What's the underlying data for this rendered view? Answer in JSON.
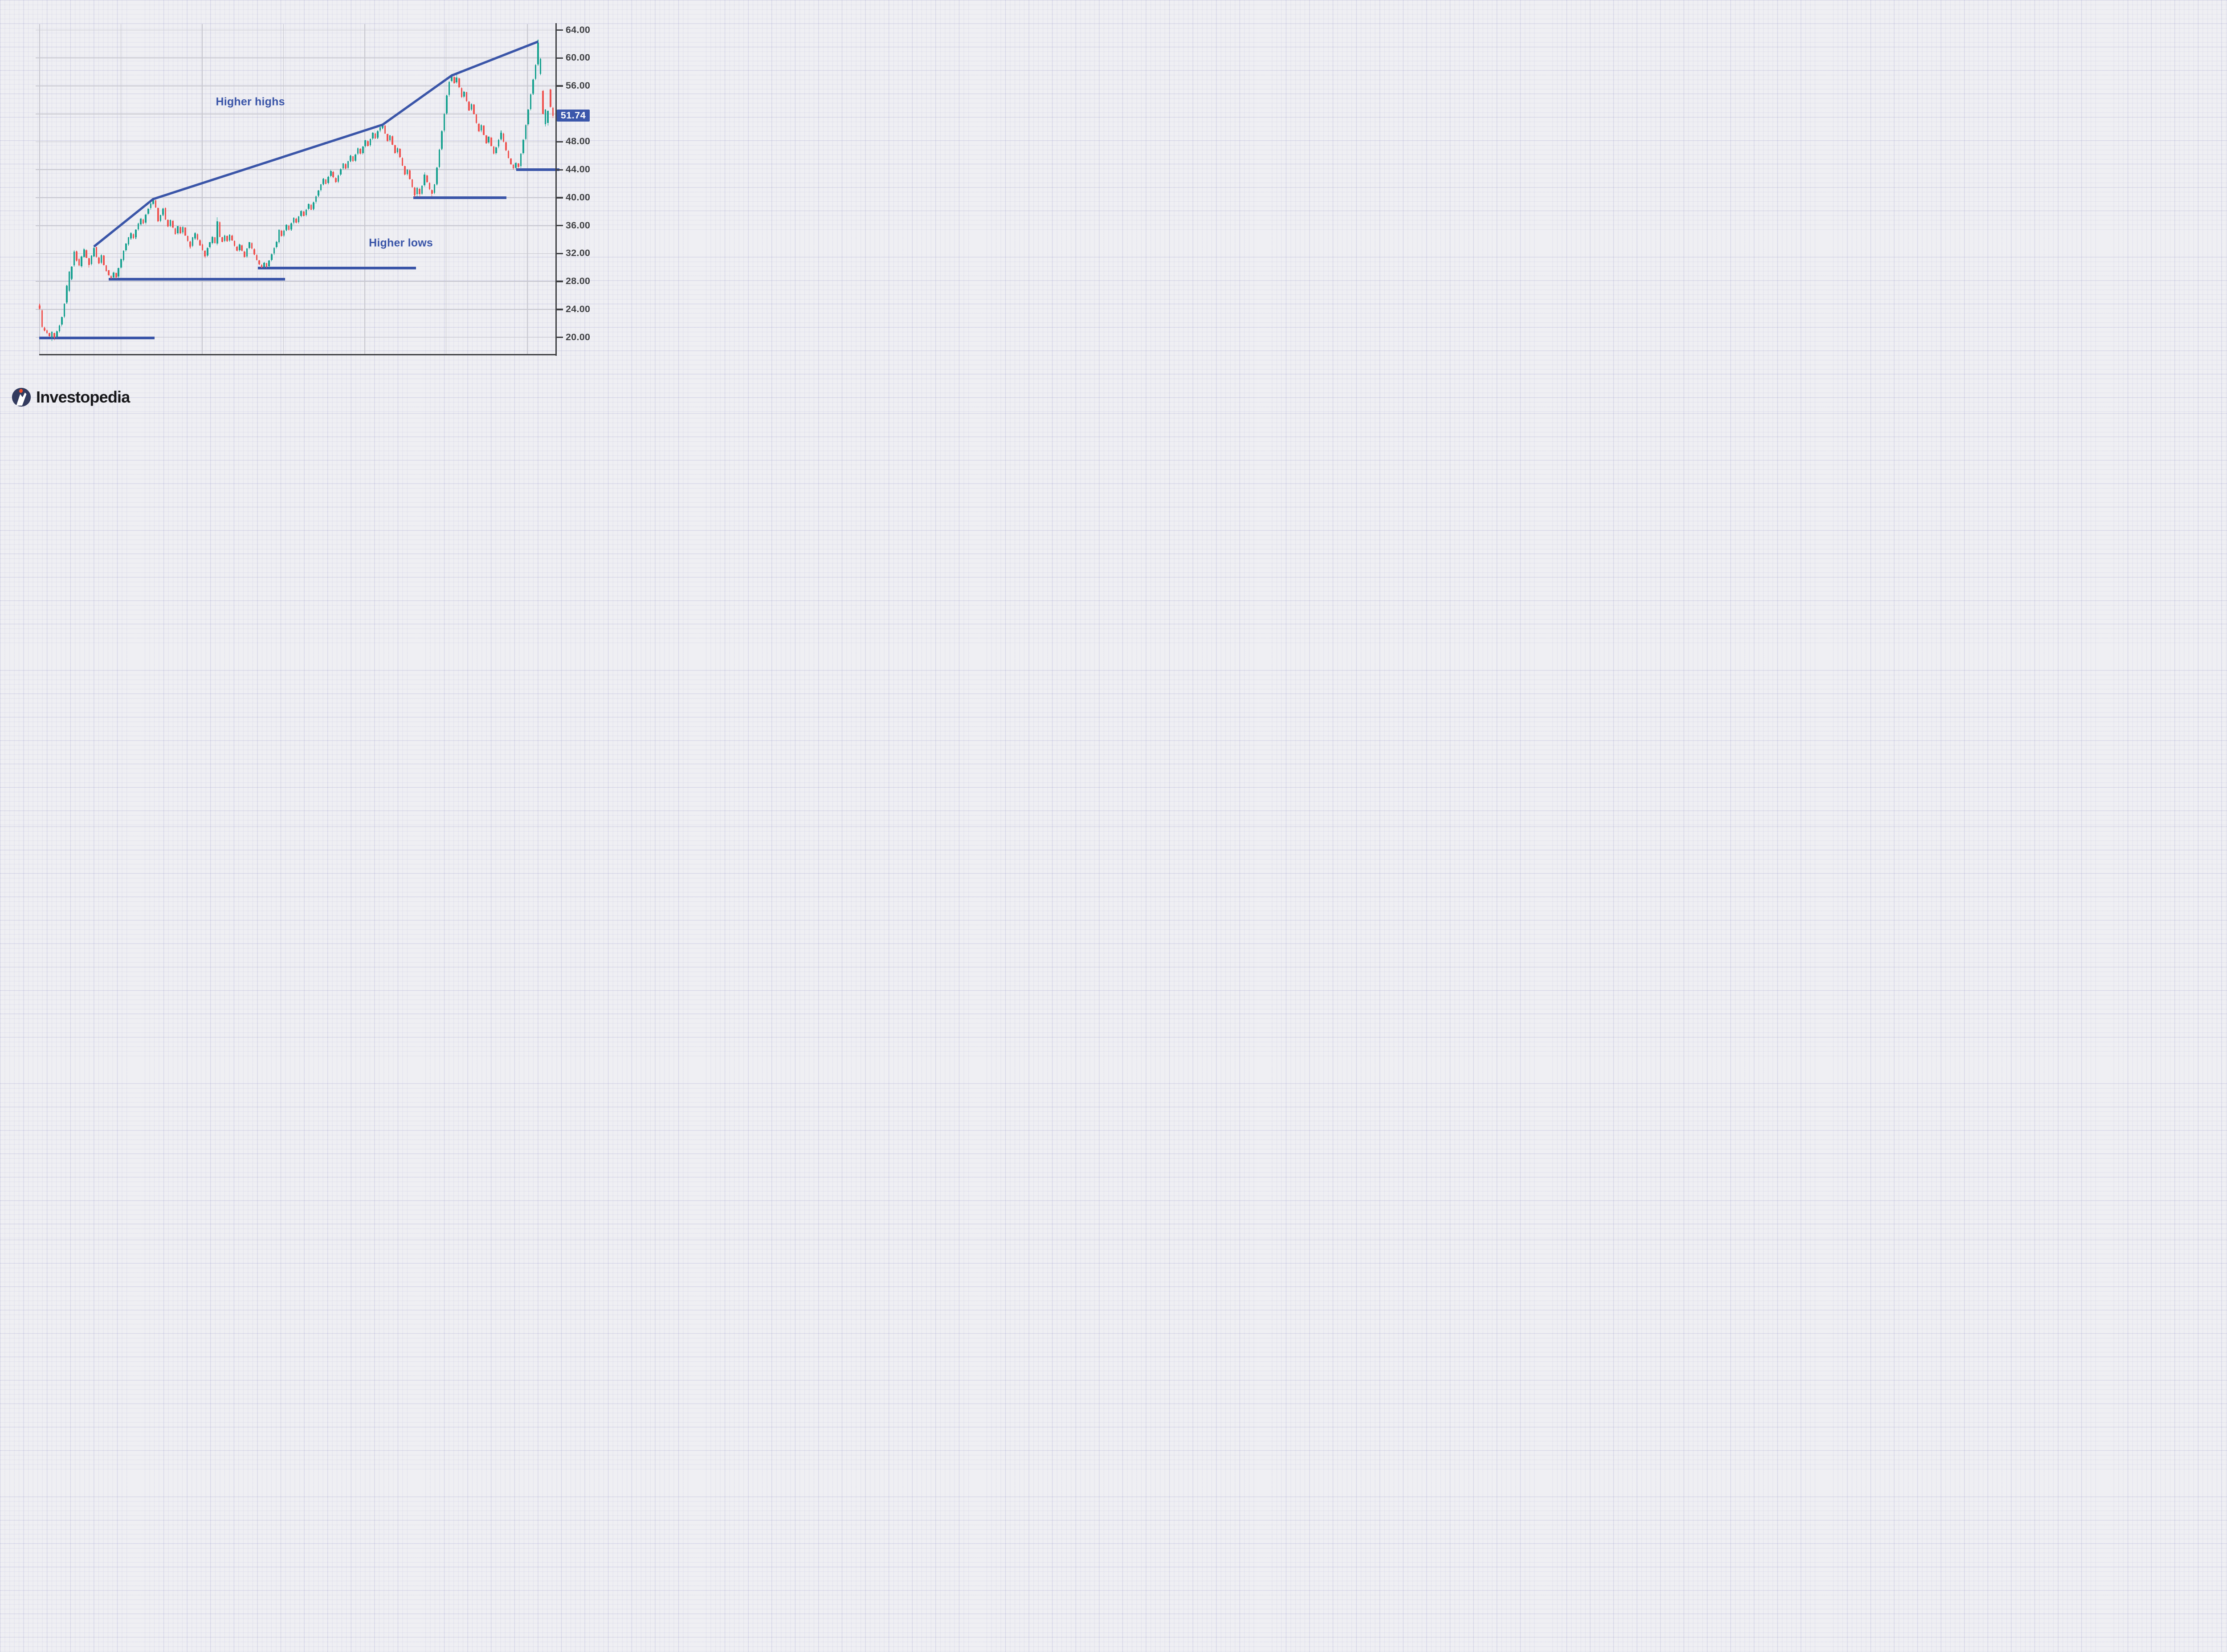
{
  "branding": {
    "logo_text": "Investopedia"
  },
  "price_tag": {
    "text": "51.74"
  },
  "chart_data": {
    "type": "candlestick",
    "title": "",
    "grid": true,
    "legend": false,
    "y_axis": {
      "side": "right",
      "tick_labels": [
        "64.00",
        "60.00",
        "56.00",
        "48.00",
        "44.00",
        "40.00",
        "36.00",
        "32.00",
        "28.00",
        "24.00",
        "20.00"
      ],
      "tick_values": [
        64,
        60,
        56,
        48,
        44,
        40,
        36,
        32,
        28,
        24,
        20
      ],
      "grid_values": [
        64,
        60,
        56,
        52,
        48,
        44,
        40,
        36,
        32,
        28,
        24,
        20
      ],
      "ylim": [
        17.6,
        64.9
      ],
      "note_52_hidden_by_price_tag": true
    },
    "x_axis": {
      "tick_labels": []
    },
    "last_price": 51.74,
    "colors": {
      "up": "#18a190",
      "down": "#ef5350",
      "line_blue": "#3a55a8",
      "axis": "#3f4043"
    },
    "annotations": [
      {
        "label": "Higher highs",
        "i": 85.4,
        "v": 53.7
      },
      {
        "label": "Higher lows",
        "i": 146.4,
        "v": 33.5
      }
    ],
    "trendline": {
      "label": "Higher highs",
      "points_iv": [
        [
          22,
          33.0
        ],
        [
          46,
          39.8
        ],
        [
          139,
          50.45
        ],
        [
          167,
          57.5
        ],
        [
          202,
          62.35
        ]
      ]
    },
    "support_lines": {
      "label": "Higher lows",
      "segments_iv": [
        [
          -0.2,
          46.6,
          19.9
        ],
        [
          27.9,
          99.4,
          28.3
        ],
        [
          88.5,
          152.5,
          29.9
        ],
        [
          151.4,
          189.2,
          40.0
        ],
        [
          193.1,
          210.6,
          44.0
        ]
      ]
    },
    "candles_ohlc": [
      [
        24.6,
        24.8,
        24.0,
        24.1
      ],
      [
        23.9,
        24.0,
        21.4,
        21.5
      ],
      [
        21.3,
        21.5,
        20.9,
        21.0
      ],
      [
        21.0,
        21.1,
        20.5,
        20.6
      ],
      [
        20.6,
        20.7,
        20.1,
        20.2
      ],
      [
        20.0,
        20.9,
        19.5,
        20.8
      ],
      [
        20.6,
        20.7,
        19.6,
        20.0
      ],
      [
        20.1,
        21.0,
        19.9,
        20.9
      ],
      [
        20.9,
        21.8,
        20.7,
        21.7
      ],
      [
        21.8,
        23.0,
        21.6,
        22.9
      ],
      [
        23.0,
        24.9,
        22.8,
        24.8
      ],
      [
        25.0,
        27.5,
        24.8,
        27.4
      ],
      [
        26.7,
        29.5,
        26.5,
        29.4
      ],
      [
        28.4,
        30.2,
        28.2,
        30.1
      ],
      [
        30.3,
        32.5,
        30.1,
        32.3
      ],
      [
        32.3,
        32.4,
        30.9,
        31.0
      ],
      [
        31.2,
        31.3,
        30.2,
        30.3
      ],
      [
        30.2,
        31.7,
        30.0,
        31.6
      ],
      [
        31.5,
        32.8,
        31.4,
        32.6
      ],
      [
        32.5,
        32.6,
        31.3,
        31.4
      ],
      [
        31.3,
        31.4,
        30.0,
        30.4
      ],
      [
        30.5,
        31.8,
        30.3,
        31.7
      ],
      [
        31.6,
        33.0,
        31.5,
        32.8
      ],
      [
        32.9,
        33.0,
        31.4,
        31.5
      ],
      [
        31.4,
        31.5,
        30.5,
        30.6
      ],
      [
        30.7,
        31.9,
        30.5,
        31.8
      ],
      [
        31.7,
        31.8,
        30.3,
        30.4
      ],
      [
        30.3,
        30.4,
        29.4,
        29.5
      ],
      [
        29.6,
        29.7,
        28.8,
        28.9
      ],
      [
        28.8,
        28.9,
        28.3,
        28.5
      ],
      [
        28.6,
        29.4,
        28.4,
        29.3
      ],
      [
        29.2,
        29.3,
        28.4,
        28.6
      ],
      [
        28.7,
        30.0,
        28.5,
        29.9
      ],
      [
        30.0,
        31.3,
        29.8,
        31.2
      ],
      [
        31.1,
        32.5,
        30.9,
        32.4
      ],
      [
        32.5,
        33.5,
        32.3,
        33.4
      ],
      [
        33.3,
        34.4,
        33.1,
        34.3
      ],
      [
        34.2,
        35.0,
        34.0,
        34.9
      ],
      [
        34.8,
        34.9,
        34.1,
        34.2
      ],
      [
        34.3,
        35.5,
        34.1,
        35.4
      ],
      [
        35.5,
        36.4,
        35.3,
        36.3
      ],
      [
        36.2,
        37.1,
        36.0,
        37.0
      ],
      [
        36.9,
        37.0,
        36.2,
        36.3
      ],
      [
        36.4,
        37.7,
        36.2,
        37.6
      ],
      [
        37.7,
        38.5,
        37.5,
        38.4
      ],
      [
        38.5,
        39.3,
        38.3,
        39.2
      ],
      [
        39.1,
        39.9,
        38.9,
        39.7
      ],
      [
        39.6,
        39.7,
        38.5,
        38.6
      ],
      [
        38.5,
        38.6,
        36.5,
        36.6
      ],
      [
        36.7,
        37.6,
        36.5,
        37.5
      ],
      [
        37.6,
        38.5,
        37.4,
        38.4
      ],
      [
        38.5,
        38.6,
        36.8,
        36.9
      ],
      [
        36.8,
        36.9,
        35.8,
        35.9
      ],
      [
        36.0,
        36.9,
        35.8,
        36.8
      ],
      [
        36.7,
        36.8,
        35.6,
        35.7
      ],
      [
        35.6,
        35.7,
        34.7,
        34.8
      ],
      [
        34.9,
        36.0,
        34.7,
        35.9
      ],
      [
        35.8,
        35.9,
        34.8,
        34.9
      ],
      [
        35.0,
        35.9,
        34.8,
        35.8
      ],
      [
        35.7,
        35.8,
        34.5,
        34.6
      ],
      [
        34.5,
        34.6,
        33.7,
        33.8
      ],
      [
        33.7,
        33.8,
        32.7,
        33.0
      ],
      [
        33.1,
        34.4,
        32.9,
        34.3
      ],
      [
        34.2,
        35.0,
        34.0,
        34.9
      ],
      [
        34.8,
        34.9,
        33.9,
        34.0
      ],
      [
        33.9,
        34.0,
        33.1,
        33.2
      ],
      [
        33.3,
        33.4,
        32.4,
        32.5
      ],
      [
        32.4,
        32.5,
        31.3,
        31.6
      ],
      [
        31.7,
        32.9,
        31.5,
        32.8
      ],
      [
        32.9,
        33.7,
        32.7,
        33.6
      ],
      [
        33.5,
        34.5,
        33.3,
        34.4
      ],
      [
        34.3,
        34.4,
        33.4,
        33.5
      ],
      [
        33.4,
        37.2,
        33.2,
        36.6
      ],
      [
        36.5,
        36.6,
        34.3,
        34.4
      ],
      [
        34.3,
        34.4,
        33.6,
        33.7
      ],
      [
        33.8,
        34.7,
        33.6,
        34.6
      ],
      [
        34.5,
        34.6,
        33.7,
        33.8
      ],
      [
        33.9,
        34.8,
        33.7,
        34.7
      ],
      [
        34.6,
        34.7,
        33.8,
        33.9
      ],
      [
        33.8,
        33.9,
        33.0,
        33.1
      ],
      [
        33.0,
        33.1,
        32.3,
        32.4
      ],
      [
        32.5,
        33.4,
        32.3,
        33.3
      ],
      [
        33.2,
        33.3,
        32.3,
        32.4
      ],
      [
        32.3,
        32.4,
        31.4,
        31.5
      ],
      [
        31.6,
        32.8,
        31.4,
        32.7
      ],
      [
        32.8,
        33.7,
        32.6,
        33.6
      ],
      [
        33.5,
        33.6,
        32.6,
        32.7
      ],
      [
        32.6,
        32.7,
        31.8,
        31.9
      ],
      [
        31.8,
        31.9,
        31.0,
        31.1
      ],
      [
        31.0,
        31.1,
        30.4,
        30.5
      ],
      [
        30.4,
        30.5,
        29.9,
        30.0
      ],
      [
        30.1,
        30.8,
        29.9,
        30.7
      ],
      [
        30.6,
        30.7,
        29.9,
        30.1
      ],
      [
        30.2,
        31.1,
        30.0,
        31.0
      ],
      [
        31.1,
        32.0,
        30.9,
        31.9
      ],
      [
        32.0,
        32.9,
        31.8,
        32.8
      ],
      [
        32.9,
        33.8,
        32.7,
        33.7
      ],
      [
        33.6,
        35.5,
        33.4,
        35.4
      ],
      [
        35.3,
        35.4,
        34.4,
        34.5
      ],
      [
        34.6,
        35.4,
        34.4,
        35.3
      ],
      [
        35.4,
        36.2,
        35.2,
        36.1
      ],
      [
        36.0,
        36.1,
        35.3,
        35.4
      ],
      [
        35.5,
        36.4,
        35.3,
        36.3
      ],
      [
        36.4,
        37.2,
        36.2,
        37.1
      ],
      [
        37.0,
        37.1,
        36.3,
        36.4
      ],
      [
        36.5,
        37.4,
        36.3,
        37.3
      ],
      [
        37.4,
        38.2,
        37.2,
        38.1
      ],
      [
        38.0,
        38.1,
        37.3,
        37.4
      ],
      [
        37.5,
        38.4,
        37.3,
        38.3
      ],
      [
        38.4,
        39.2,
        38.2,
        39.1
      ],
      [
        39.0,
        39.1,
        38.2,
        38.3
      ],
      [
        38.4,
        39.4,
        38.2,
        39.3
      ],
      [
        39.4,
        40.3,
        39.2,
        40.2
      ],
      [
        40.3,
        41.1,
        40.1,
        41.0
      ],
      [
        41.1,
        42.0,
        40.9,
        41.9
      ],
      [
        42.0,
        42.8,
        41.8,
        42.7
      ],
      [
        42.6,
        42.7,
        41.9,
        42.0
      ],
      [
        42.1,
        43.1,
        41.9,
        43.0
      ],
      [
        43.1,
        44.0,
        42.9,
        43.8
      ],
      [
        43.7,
        43.8,
        42.8,
        42.9
      ],
      [
        42.8,
        42.9,
        42.1,
        42.2
      ],
      [
        42.3,
        43.3,
        42.1,
        43.2
      ],
      [
        43.3,
        44.2,
        43.1,
        44.1
      ],
      [
        44.2,
        45.0,
        44.0,
        44.9
      ],
      [
        44.8,
        44.9,
        44.1,
        44.2
      ],
      [
        44.3,
        45.3,
        44.1,
        45.2
      ],
      [
        45.3,
        46.1,
        45.1,
        46.0
      ],
      [
        45.9,
        46.0,
        45.1,
        45.2
      ],
      [
        45.3,
        46.3,
        45.1,
        46.2
      ],
      [
        46.3,
        47.2,
        46.1,
        47.1
      ],
      [
        47.0,
        47.1,
        46.2,
        46.3
      ],
      [
        46.4,
        47.4,
        46.2,
        47.3
      ],
      [
        47.4,
        48.3,
        47.2,
        48.2
      ],
      [
        48.1,
        48.2,
        47.3,
        47.4
      ],
      [
        47.5,
        48.5,
        47.3,
        48.4
      ],
      [
        48.5,
        49.4,
        48.3,
        49.3
      ],
      [
        49.2,
        49.3,
        48.4,
        48.5
      ],
      [
        48.6,
        49.6,
        48.4,
        49.5
      ],
      [
        49.6,
        50.2,
        49.4,
        50.1
      ],
      [
        50.0,
        50.6,
        49.8,
        50.4
      ],
      [
        50.3,
        50.4,
        49.1,
        49.2
      ],
      [
        49.1,
        49.2,
        48.0,
        48.1
      ],
      [
        48.2,
        49.0,
        48.0,
        48.9
      ],
      [
        48.8,
        48.9,
        47.5,
        47.6
      ],
      [
        47.5,
        47.6,
        46.3,
        46.4
      ],
      [
        46.5,
        47.2,
        46.3,
        47.1
      ],
      [
        47.0,
        47.1,
        45.7,
        45.8
      ],
      [
        45.7,
        45.8,
        44.5,
        44.6
      ],
      [
        44.5,
        44.6,
        43.2,
        43.3
      ],
      [
        43.4,
        44.1,
        43.2,
        44.0
      ],
      [
        43.9,
        44.0,
        42.6,
        42.7
      ],
      [
        42.6,
        42.7,
        41.4,
        41.5
      ],
      [
        41.4,
        41.5,
        40.1,
        40.4
      ],
      [
        40.5,
        41.5,
        40.2,
        41.4
      ],
      [
        41.3,
        41.4,
        40.1,
        40.5
      ],
      [
        40.6,
        41.8,
        40.4,
        41.7
      ],
      [
        41.8,
        43.6,
        41.6,
        43.3
      ],
      [
        43.2,
        43.3,
        42.1,
        42.2
      ],
      [
        42.1,
        42.2,
        41.1,
        41.2
      ],
      [
        41.1,
        41.2,
        40.2,
        40.6
      ],
      [
        40.7,
        42.0,
        40.5,
        41.9
      ],
      [
        42.0,
        44.4,
        41.8,
        44.3
      ],
      [
        44.4,
        47.0,
        44.2,
        46.9
      ],
      [
        47.0,
        49.6,
        46.8,
        49.5
      ],
      [
        49.6,
        52.1,
        49.4,
        52.0
      ],
      [
        52.1,
        54.7,
        51.9,
        54.6
      ],
      [
        54.7,
        56.7,
        54.5,
        56.6
      ],
      [
        56.7,
        57.7,
        56.5,
        57.4
      ],
      [
        57.3,
        57.4,
        56.3,
        56.4
      ],
      [
        56.5,
        57.6,
        56.3,
        57.2
      ],
      [
        57.1,
        57.2,
        55.7,
        55.8
      ],
      [
        55.7,
        55.8,
        54.3,
        54.4
      ],
      [
        54.5,
        55.3,
        54.3,
        55.2
      ],
      [
        55.1,
        55.2,
        53.7,
        53.8
      ],
      [
        53.7,
        53.8,
        52.4,
        52.5
      ],
      [
        52.6,
        53.5,
        52.4,
        53.4
      ],
      [
        53.3,
        53.4,
        51.9,
        52.0
      ],
      [
        51.9,
        52.0,
        50.6,
        50.7
      ],
      [
        50.6,
        50.7,
        49.4,
        49.5
      ],
      [
        49.6,
        50.5,
        49.4,
        50.4
      ],
      [
        50.3,
        50.4,
        48.9,
        49.0
      ],
      [
        48.9,
        49.0,
        47.7,
        47.8
      ],
      [
        47.9,
        48.8,
        47.7,
        48.7
      ],
      [
        48.6,
        48.7,
        47.3,
        47.4
      ],
      [
        47.3,
        47.4,
        46.2,
        46.3
      ],
      [
        46.4,
        47.3,
        46.2,
        47.2
      ],
      [
        47.3,
        48.4,
        47.1,
        48.3
      ],
      [
        48.4,
        49.6,
        48.2,
        49.3
      ],
      [
        49.2,
        49.3,
        47.9,
        48.0
      ],
      [
        47.9,
        48.0,
        46.7,
        46.8
      ],
      [
        46.7,
        46.8,
        45.6,
        45.7
      ],
      [
        45.6,
        45.7,
        44.7,
        44.8
      ],
      [
        44.7,
        44.8,
        44.0,
        44.2
      ],
      [
        44.3,
        45.1,
        44.1,
        45.0
      ],
      [
        44.9,
        45.0,
        44.1,
        44.4
      ],
      [
        44.5,
        46.4,
        44.3,
        46.3
      ],
      [
        46.4,
        48.4,
        46.2,
        48.3
      ],
      [
        48.4,
        50.5,
        48.2,
        50.4
      ],
      [
        50.5,
        52.7,
        50.3,
        52.6
      ],
      [
        52.7,
        54.9,
        52.5,
        54.8
      ],
      [
        54.9,
        57.0,
        54.7,
        56.9
      ],
      [
        57.0,
        59.1,
        56.8,
        59.0
      ],
      [
        59.1,
        62.6,
        58.9,
        62.2
      ],
      [
        57.7,
        60.0,
        57.5,
        59.9
      ],
      [
        55.3,
        55.4,
        51.9,
        52.0
      ],
      [
        50.5,
        52.7,
        50.2,
        52.6
      ],
      [
        50.7,
        52.5,
        50.3,
        52.4
      ],
      [
        55.5,
        55.6,
        52.9,
        53.0
      ],
      [
        52.9,
        53.0,
        51.4,
        51.74
      ]
    ]
  }
}
